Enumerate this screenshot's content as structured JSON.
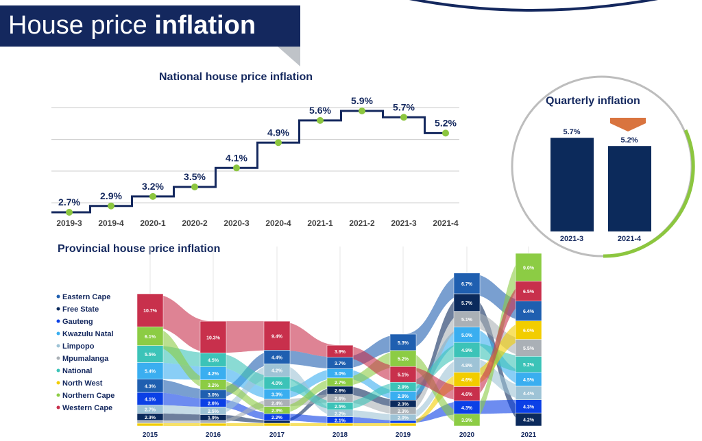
{
  "header": {
    "title_regular": "House price ",
    "title_bold": "inflation"
  },
  "chart_data": [
    {
      "type": "line",
      "title": "National house price inflation",
      "step": true,
      "categories": [
        "2019-3",
        "2019-4",
        "2020-1",
        "2020-2",
        "2020-3",
        "2020-4",
        "2021-1",
        "2021-2",
        "2021-3",
        "2021-4"
      ],
      "values": [
        2.7,
        2.9,
        3.2,
        3.5,
        4.1,
        4.9,
        5.6,
        5.9,
        5.7,
        5.2
      ],
      "labels": [
        "2.7%",
        "2.9%",
        "3.2%",
        "3.5%",
        "4.1%",
        "4.9%",
        "5.6%",
        "5.9%",
        "5.7%",
        "5.2%"
      ],
      "ylim": [
        2.6,
        6.2
      ],
      "grid": true,
      "line_color": "#14285e",
      "point_color": "#8cc63f"
    },
    {
      "type": "bar",
      "title": "Quarterly inflation",
      "categories": [
        "2021-3",
        "2021-4"
      ],
      "values": [
        5.7,
        5.2
      ],
      "labels": [
        "5.7%",
        "5.2%"
      ],
      "bar_color": "#0c2a5b",
      "indicator": "down-arrow",
      "indicator_color": "#d9743f"
    },
    {
      "type": "ranked-stacked-flow",
      "title": "Provincial house price inflation",
      "legend": "left",
      "categories": [
        "2015",
        "2016",
        "2017",
        "2018",
        "2019",
        "2020",
        "2021"
      ],
      "series": [
        {
          "name": "Eastern Cape",
          "color": "#1f5fb0"
        },
        {
          "name": "Free State",
          "color": "#0b2a5c"
        },
        {
          "name": "Gauteng",
          "color": "#0b40e6"
        },
        {
          "name": "Kwazulu Natal",
          "color": "#3aaef0"
        },
        {
          "name": "Limpopo",
          "color": "#9ec3d6"
        },
        {
          "name": "Mpumalanga",
          "color": "#aab0b6"
        },
        {
          "name": "National",
          "color": "#3cc3b8"
        },
        {
          "name": "North West",
          "color": "#f2cd00"
        },
        {
          "name": "Northern Cape",
          "color": "#8ccc44"
        },
        {
          "name": "Western Cape",
          "color": "#c8304c"
        }
      ],
      "columns": [
        [
          [
            "Western Cape",
            10.7
          ],
          [
            "Northern Cape",
            6.1
          ],
          [
            "National",
            5.5
          ],
          [
            "Kwazulu Natal",
            5.4
          ],
          [
            "Eastern Cape",
            4.3
          ],
          [
            "Gauteng",
            4.1
          ],
          [
            "Limpopo",
            2.7
          ],
          [
            "Free State",
            2.3
          ],
          [
            "Mpumalanga",
            null
          ],
          [
            "North West",
            null
          ]
        ],
        [
          [
            "Western Cape",
            10.3
          ],
          [
            "National",
            4.5
          ],
          [
            "Kwazulu Natal",
            4.2
          ],
          [
            "Northern Cape",
            3.2
          ],
          [
            "Eastern Cape",
            3.0
          ],
          [
            "Gauteng",
            2.6
          ],
          [
            "Limpopo",
            2.5
          ],
          [
            "Free State",
            1.9
          ],
          [
            "Mpumalanga",
            null
          ],
          [
            "North West",
            null
          ]
        ],
        [
          [
            "Western Cape",
            9.4
          ],
          [
            "Eastern Cape",
            4.4
          ],
          [
            "Limpopo",
            4.2
          ],
          [
            "National",
            4.0
          ],
          [
            "Kwazulu Natal",
            3.3
          ],
          [
            "Mpumalanga",
            2.4
          ],
          [
            "Northern Cape",
            2.3
          ],
          [
            "Gauteng",
            2.2
          ],
          [
            "Free State",
            null
          ],
          [
            "North West",
            null
          ]
        ],
        [
          [
            "Western Cape",
            3.9
          ],
          [
            "Eastern Cape",
            3.7
          ],
          [
            "Kwazulu Natal",
            3.0
          ],
          [
            "Northern Cape",
            2.7
          ],
          [
            "Free State",
            2.6
          ],
          [
            "Mpumalanga",
            2.6
          ],
          [
            "National",
            2.5
          ],
          [
            "Limpopo",
            2.2
          ],
          [
            "Gauteng",
            2.1
          ],
          [
            "North West",
            null
          ]
        ],
        [
          [
            "Eastern Cape",
            5.3
          ],
          [
            "Northern Cape",
            5.2
          ],
          [
            "Western Cape",
            5.1
          ],
          [
            "National",
            2.9
          ],
          [
            "Kwazulu Natal",
            2.9
          ],
          [
            "Free State",
            2.3
          ],
          [
            "Mpumalanga",
            2.3
          ],
          [
            "Limpopo",
            2.0
          ],
          [
            "Gauteng",
            null
          ],
          [
            "North West",
            null
          ]
        ],
        [
          [
            "Eastern Cape",
            6.7
          ],
          [
            "Free State",
            5.7
          ],
          [
            "Mpumalanga",
            5.1
          ],
          [
            "Kwazulu Natal",
            5.0
          ],
          [
            "National",
            4.9
          ],
          [
            "Limpopo",
            4.8
          ],
          [
            "North West",
            4.6
          ],
          [
            "Western Cape",
            4.6
          ],
          [
            "Gauteng",
            4.3
          ],
          [
            "Northern Cape",
            3.9
          ]
        ],
        [
          [
            "Northern Cape",
            9.0
          ],
          [
            "Western Cape",
            6.5
          ],
          [
            "Eastern Cape",
            6.4
          ],
          [
            "North West",
            6.0
          ],
          [
            "Mpumalanga",
            5.5
          ],
          [
            "National",
            5.2
          ],
          [
            "Kwazulu Natal",
            4.5
          ],
          [
            "Limpopo",
            4.4
          ],
          [
            "Gauteng",
            4.3
          ],
          [
            "Free State",
            4.2
          ]
        ]
      ]
    }
  ]
}
